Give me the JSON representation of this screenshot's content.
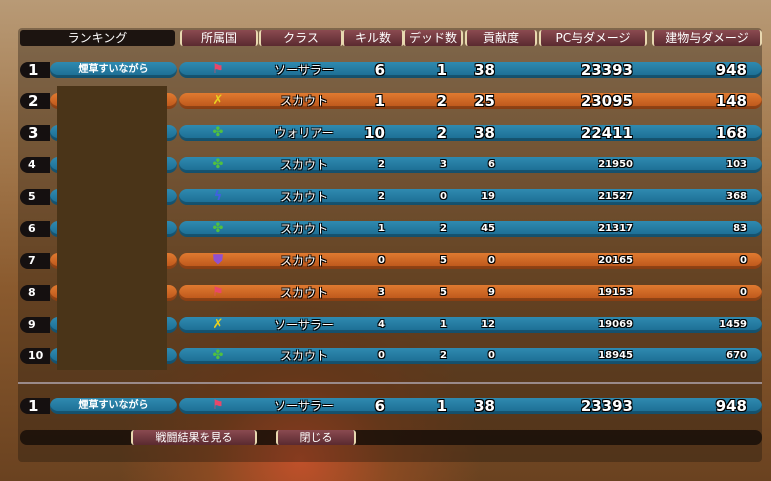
{
  "headers": {
    "ranking": "ランキング",
    "nation": "所属国",
    "class": "クラス",
    "kills": "キル数",
    "deaths": "デッド数",
    "contribution": "貢献度",
    "pc_damage": "PC与ダメージ",
    "building_damage": "建物与ダメージ"
  },
  "rows": [
    {
      "rank": "1",
      "name": "煙草すいながら",
      "team": "blue",
      "nation_icon": "red-flag",
      "class": "ソーサラー",
      "kills": "6",
      "deaths": "1",
      "contribution": "38",
      "pc_damage": "23393",
      "building_damage": "948"
    },
    {
      "rank": "2",
      "name": "",
      "team": "orange",
      "nation_icon": "yellow-sword",
      "class": "スカウト",
      "kills": "1",
      "deaths": "2",
      "contribution": "25",
      "pc_damage": "23095",
      "building_damage": "148"
    },
    {
      "rank": "3",
      "name": "",
      "team": "blue",
      "nation_icon": "green-clover",
      "class": "ウォリアー",
      "kills": "10",
      "deaths": "2",
      "contribution": "38",
      "pc_damage": "22411",
      "building_damage": "168"
    },
    {
      "rank": "4",
      "name": "",
      "team": "blue",
      "nation_icon": "green-clover",
      "class": "スカウト",
      "kills": "2",
      "deaths": "3",
      "contribution": "6",
      "pc_damage": "21950",
      "building_damage": "103"
    },
    {
      "rank": "5",
      "name": "",
      "team": "blue",
      "nation_icon": "blue-lightning",
      "class": "スカウト",
      "kills": "2",
      "deaths": "0",
      "contribution": "19",
      "pc_damage": "21527",
      "building_damage": "368"
    },
    {
      "rank": "6",
      "name": "",
      "team": "blue",
      "nation_icon": "green-clover",
      "class": "スカウト",
      "kills": "1",
      "deaths": "2",
      "contribution": "45",
      "pc_damage": "21317",
      "building_damage": "83"
    },
    {
      "rank": "7",
      "name": "",
      "team": "orange",
      "nation_icon": "purple-shield",
      "class": "スカウト",
      "kills": "0",
      "deaths": "5",
      "contribution": "0",
      "pc_damage": "20165",
      "building_damage": "0"
    },
    {
      "rank": "8",
      "name": "",
      "team": "orange",
      "nation_icon": "red-flag",
      "class": "スカウト",
      "kills": "3",
      "deaths": "5",
      "contribution": "9",
      "pc_damage": "19153",
      "building_damage": "0"
    },
    {
      "rank": "9",
      "name": "",
      "team": "blue",
      "nation_icon": "yellow-sword",
      "class": "ソーサラー",
      "kills": "4",
      "deaths": "1",
      "contribution": "12",
      "pc_damage": "19069",
      "building_damage": "1459"
    },
    {
      "rank": "10",
      "name": "",
      "team": "blue",
      "nation_icon": "green-clover",
      "class": "スカウト",
      "kills": "0",
      "deaths": "2",
      "contribution": "0",
      "pc_damage": "18945",
      "building_damage": "670"
    }
  ],
  "self_row": {
    "rank": "1",
    "name": "煙草すいながら",
    "team": "blue",
    "nation_icon": "red-flag",
    "class": "ソーサラー",
    "kills": "6",
    "deaths": "1",
    "contribution": "38",
    "pc_damage": "23393",
    "building_damage": "948"
  },
  "buttons": {
    "view_results": "戦闘結果を見る",
    "close": "閉じる"
  },
  "colors": {
    "blue": "#2f8ab0",
    "orange": "#e07a30"
  }
}
